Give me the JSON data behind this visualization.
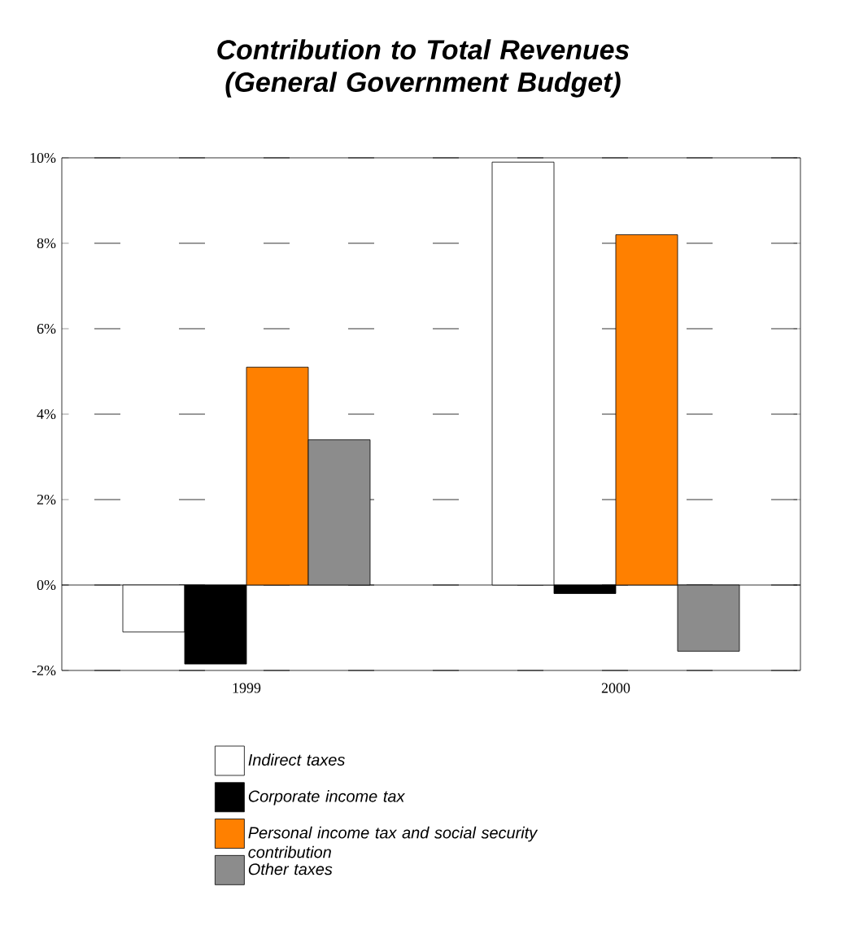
{
  "chart_data": {
    "type": "bar",
    "title": "Contribution to Total Revenues (General Government Budget)",
    "categories": [
      "1999",
      "2000"
    ],
    "series": [
      {
        "name": "Indirect taxes",
        "color": "#ffffff",
        "values": [
          -1.1,
          9.9
        ]
      },
      {
        "name": "Corporate income tax",
        "color": "#000000",
        "values": [
          -1.85,
          -0.2
        ]
      },
      {
        "name": "Personal income tax and social security contribution",
        "color": "#ff8000",
        "values": [
          5.1,
          8.2
        ]
      },
      {
        "name": "Other taxes",
        "color": "#8c8c8c",
        "values": [
          3.4,
          -1.55
        ]
      }
    ],
    "ylim": [
      -2,
      10
    ],
    "yticks": [
      {
        "value": -2,
        "label": "-2%"
      },
      {
        "value": 0,
        "label": "0%"
      },
      {
        "value": 2,
        "label": "2%"
      },
      {
        "value": 4,
        "label": "4%"
      },
      {
        "value": 6,
        "label": "6%"
      },
      {
        "value": 8,
        "label": "8%"
      },
      {
        "value": 10,
        "label": "10%"
      }
    ],
    "grid": "y",
    "legend": "bottom"
  }
}
